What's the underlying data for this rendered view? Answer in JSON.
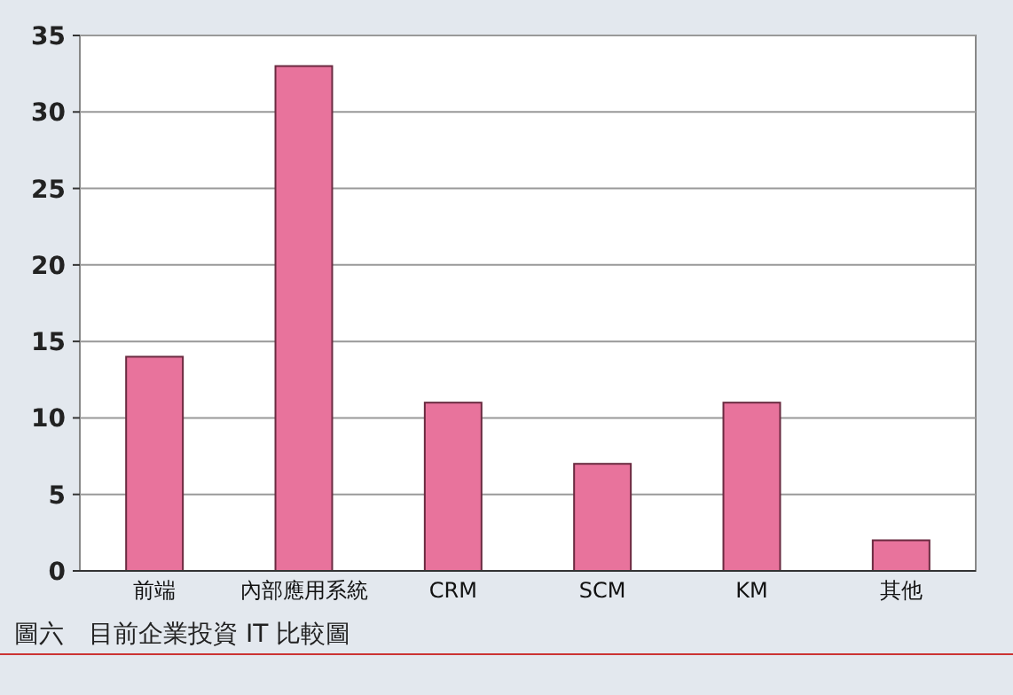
{
  "chart_data": {
    "type": "bar",
    "categories": [
      "前端",
      "內部應用系統",
      "CRM",
      "SCM",
      "KM",
      "其他"
    ],
    "values": [
      14,
      33,
      11,
      7,
      11,
      2
    ],
    "color": "#e8739c",
    "ylim": [
      0,
      35
    ],
    "yticks": [
      0,
      5,
      10,
      15,
      20,
      25,
      30,
      35
    ],
    "grid": "y",
    "annotations": [
      "圖六　目前企業投資 IT 比較圖"
    ]
  }
}
